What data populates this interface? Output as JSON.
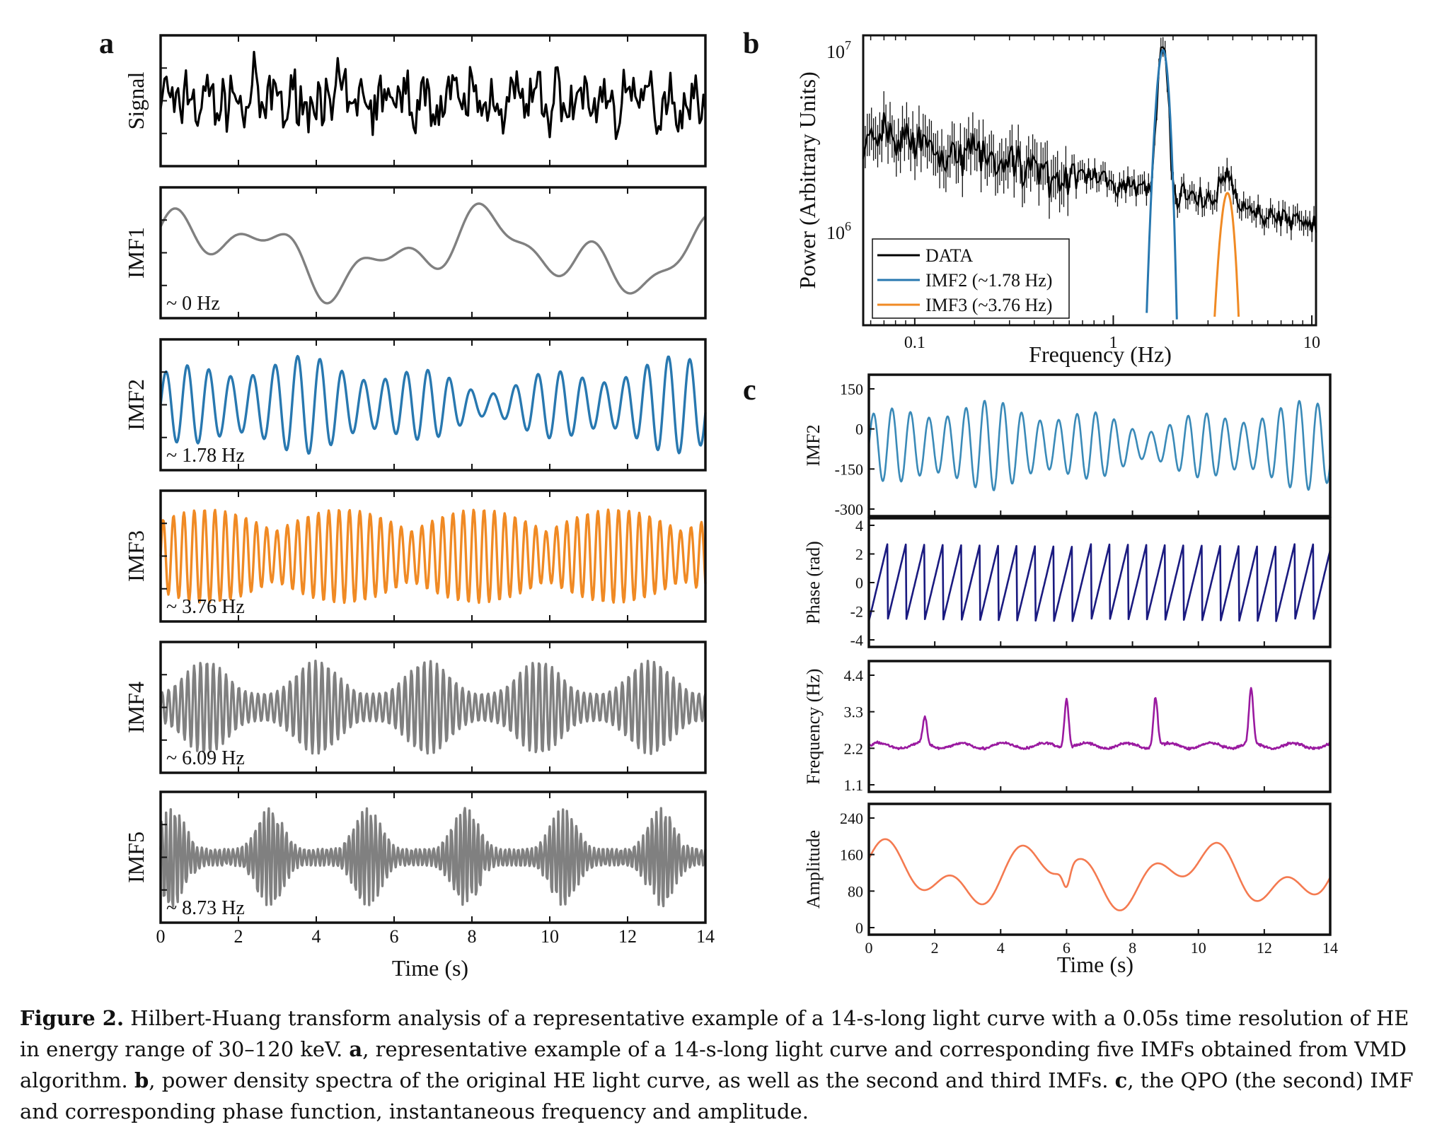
{
  "panel_a": {
    "label": "a",
    "xlabel": "Time (s)",
    "xticks": [
      "0",
      "2",
      "4",
      "6",
      "8",
      "10",
      "12",
      "14"
    ],
    "rows": [
      {
        "ylabel": "Signal",
        "freq_label": "",
        "color": "#000000"
      },
      {
        "ylabel": "IMF1",
        "freq_label": "~ 0 Hz",
        "color": "#808080"
      },
      {
        "ylabel": "IMF2",
        "freq_label": "~ 1.78 Hz",
        "color": "#2878b0"
      },
      {
        "ylabel": "IMF3",
        "freq_label": "~ 3.76 Hz",
        "color": "#f08a24"
      },
      {
        "ylabel": "IMF4",
        "freq_label": "~ 6.09 Hz",
        "color": "#808080"
      },
      {
        "ylabel": "IMF5",
        "freq_label": "~ 8.73 Hz",
        "color": "#808080"
      }
    ]
  },
  "panel_b": {
    "label": "b",
    "ylabel": "Power (Arbitrary Units)",
    "xlabel": "Frequency (Hz)",
    "xticks": [
      "0.1",
      "1",
      "10"
    ],
    "yticks": [
      {
        "base": "10",
        "exp": "7"
      },
      {
        "base": "10",
        "exp": "6"
      }
    ],
    "legend": [
      {
        "label": "DATA",
        "color": "#000000"
      },
      {
        "label": "IMF2 (~1.78 Hz)",
        "color": "#2878b0"
      },
      {
        "label": "IMF3 (~3.76 Hz)",
        "color": "#f08a24"
      }
    ]
  },
  "panel_c": {
    "label": "c",
    "xlabel": "Time (s)",
    "xticks": [
      "0",
      "2",
      "4",
      "6",
      "8",
      "10",
      "12",
      "14"
    ],
    "rows": [
      {
        "ylabel": "IMF2",
        "yticks": [
          "150",
          "0",
          "-150",
          "-300"
        ],
        "color": "#3a8ab8"
      },
      {
        "ylabel": "Phase (rad)",
        "yticks": [
          "4",
          "2",
          "0",
          "-2",
          "-4"
        ],
        "color": "#1a1a80"
      },
      {
        "ylabel": "Frequency (Hz)",
        "yticks": [
          "4.4",
          "3.3",
          "2.2",
          "1.1"
        ],
        "color": "#9a1aa0"
      },
      {
        "ylabel": "Amplitude",
        "yticks": [
          "240",
          "160",
          "80",
          "0"
        ],
        "color": "#f47a50"
      }
    ]
  },
  "caption": {
    "lead": "Figure 2.",
    "l1": " Hilbert-Huang transform analysis of a representative example of a 14-s-long light curve with a 0.05s time resolution of HE in energy range of 30–120 keV. ",
    "a": "a",
    "l2": ", representative example of a 14-s-long light curve and corresponding five IMFs obtained from VMD algorithm. ",
    "b": "b",
    "l3": ", power density spectra of the original HE light curve, as well as the second and third IMFs. ",
    "c": "c",
    "l4": ", the QPO (the second) IMF and corresponding phase function, instantaneous frequency and amplitude."
  }
}
